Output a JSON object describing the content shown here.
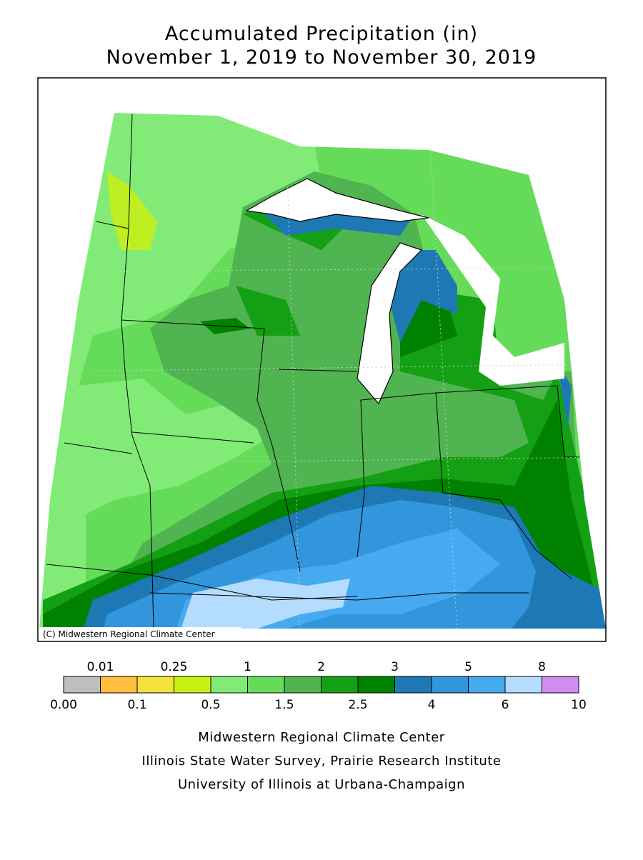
{
  "title": {
    "line1": "Accumulated Precipitation (in)",
    "line2": "November 1, 2019 to November 30, 2019"
  },
  "map": {
    "credit": "(C) Midwestern Regional Climate Center"
  },
  "legend": {
    "labels": [
      "0.00",
      "0.01",
      "0.1",
      "0.25",
      "0.5",
      "1",
      "1.5",
      "2",
      "2.5",
      "3",
      "4",
      "5",
      "6",
      "8",
      "10"
    ],
    "colors": [
      "#bebebe",
      "#ffbe3c",
      "#f5e13c",
      "#c8f014",
      "#82eb78",
      "#64dc5a",
      "#50b450",
      "#14a014",
      "#008200",
      "#1e78b4",
      "#3296dc",
      "#46aaf0",
      "#b4dcff",
      "#d28cf0"
    ]
  },
  "footer": {
    "line1": "Midwestern Regional Climate Center",
    "line2": "Illinois State Water Survey, Prairie Research Institute",
    "line3": "University of Illinois at Urbana-Champaign"
  }
}
